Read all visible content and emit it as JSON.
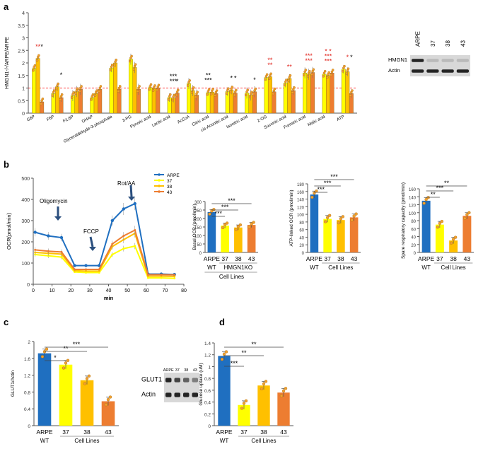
{
  "colors": {
    "arpe": "#1f6fc0",
    "c37": "#ffff00",
    "c38": "#ffc000",
    "c43": "#ed7d31",
    "dot": "#f0a030",
    "star_red": "#e0211a",
    "star_black": "#000000",
    "refline": "#ff0000"
  },
  "panels": {
    "a": "a",
    "b": "b",
    "c": "c",
    "d": "d"
  },
  "chart_data": [
    {
      "id": "a",
      "type": "bar",
      "ylabel": "HMGN1-/-/ARPE/ARPE",
      "ylim": [
        0,
        4
      ],
      "yticks": [
        "0",
        "0.5",
        "1",
        "1.5",
        "2",
        "2.5",
        "3",
        "3.5",
        "4"
      ],
      "reference_line": 1,
      "categories": [
        "G6P",
        "F6P",
        "F1,6P",
        "DHAP",
        "Glyceraldehyde-3-phosphate",
        "3-PG",
        "Pyruvic acid",
        "Lactic acid",
        "AcCoA",
        "Citric acid",
        "cis-Aconitic acid",
        "Isocitric acid",
        "2-OG",
        "Succinic acid",
        "Fumaric acid",
        "Malic acid",
        "ATP"
      ],
      "series": [
        {
          "name": "37",
          "values": [
            1.78,
            0.78,
            0.7,
            0.62,
            1.8,
            2.15,
            1.02,
            0.62,
            1.18,
            0.82,
            0.86,
            0.8,
            1.42,
            1.2,
            1.6,
            1.55,
            1.75
          ]
        },
        {
          "name": "38",
          "values": [
            2.18,
            1.05,
            0.86,
            0.78,
            2.0,
            1.82,
            0.98,
            0.6,
            0.9,
            0.84,
            0.92,
            0.72,
            1.45,
            1.38,
            1.55,
            1.5,
            1.65
          ]
        },
        {
          "name": "43",
          "values": [
            0.45,
            0.62,
            0.95,
            0.95,
            0.95,
            0.95,
            1.0,
            0.8,
            0.72,
            0.78,
            0.8,
            0.85,
            0.85,
            0.9,
            1.62,
            1.6,
            0.78
          ]
        }
      ],
      "stars": [
        {
          "cat": "G6P",
          "series": 1,
          "text": "**",
          "color": "red"
        },
        {
          "cat": "G6P",
          "series": 2,
          "text": "*",
          "color": "black"
        },
        {
          "cat": "F6P",
          "series": 2,
          "text": "*",
          "color": "black"
        },
        {
          "cat": "Lactic acid",
          "series": 1,
          "text": "***",
          "color": "black"
        },
        {
          "cat": "Lactic acid",
          "series": 1,
          "text": "***",
          "color": "black",
          "row": 1
        },
        {
          "cat": "Lactic acid",
          "series": 2,
          "text": "*",
          "color": "black"
        },
        {
          "cat": "Citric acid",
          "series": 0,
          "text": "***",
          "color": "black"
        },
        {
          "cat": "Citric acid",
          "series": 0,
          "text": "**",
          "color": "black",
          "row": 1
        },
        {
          "cat": "cis-Aconitic acid",
          "series": 1,
          "text": "*",
          "color": "black"
        },
        {
          "cat": "cis-Aconitic acid",
          "series": 2,
          "text": "*",
          "color": "black"
        },
        {
          "cat": "Isocitric acid",
          "series": 2,
          "text": "*",
          "color": "black"
        },
        {
          "cat": "2-OG",
          "series": 1,
          "text": "**",
          "color": "red"
        },
        {
          "cat": "2-OG",
          "series": 1,
          "text": "**",
          "color": "red",
          "row": 1
        },
        {
          "cat": "Succinic acid",
          "series": 1,
          "text": "**",
          "color": "red"
        },
        {
          "cat": "Fumaric acid",
          "series": 1,
          "text": "***",
          "color": "red"
        },
        {
          "cat": "Fumaric acid",
          "series": 1,
          "text": "***",
          "color": "red",
          "row": 1
        },
        {
          "cat": "Malic acid",
          "series": 1,
          "text": "***",
          "color": "red"
        },
        {
          "cat": "Malic acid",
          "series": 1,
          "text": "***",
          "color": "red",
          "row": 1
        },
        {
          "cat": "Malic acid",
          "series": 1,
          "text": "* *",
          "color": "red",
          "row": 2
        },
        {
          "cat": "ATP",
          "series": 1,
          "text": "*",
          "color": "red"
        },
        {
          "cat": "ATP",
          "series": 2,
          "text": "*",
          "color": "black"
        }
      ]
    },
    {
      "id": "blot_a",
      "type": "blot",
      "lanes": [
        "ARPE",
        "37",
        "38",
        "43"
      ],
      "rows": [
        "HMGN1",
        "Actin"
      ]
    },
    {
      "id": "b_ocr",
      "type": "line",
      "title": "",
      "xlabel": "min",
      "ylabel": "OCR(pmol/min)",
      "xlim": [
        0,
        80
      ],
      "ylim": [
        0,
        500
      ],
      "xticks": [
        "0",
        "10",
        "20",
        "30",
        "40",
        "50",
        "60",
        "70",
        "80"
      ],
      "yticks": [
        "0",
        "100",
        "200",
        "300",
        "400",
        "500"
      ],
      "x": [
        1,
        8,
        15,
        22,
        28,
        35,
        42,
        48,
        54,
        61,
        68,
        75
      ],
      "series": [
        {
          "name": "ARPE",
          "values": [
            245,
            228,
            220,
            88,
            88,
            88,
            300,
            355,
            380,
            48,
            48,
            46
          ]
        },
        {
          "name": "37",
          "values": [
            140,
            134,
            128,
            58,
            55,
            55,
            140,
            168,
            180,
            30,
            30,
            28
          ]
        },
        {
          "name": "38",
          "values": [
            150,
            146,
            142,
            64,
            62,
            62,
            178,
            210,
            240,
            38,
            38,
            37
          ]
        },
        {
          "name": "43",
          "values": [
            162,
            156,
            152,
            70,
            70,
            70,
            190,
            228,
            255,
            45,
            45,
            44
          ]
        }
      ],
      "annotations": [
        "Oligomycin",
        "FCCP",
        "Rot/AA"
      ]
    },
    {
      "id": "b_basal",
      "type": "bar",
      "ylabel": "Basal OCR (pmol/min)",
      "ylim": [
        0,
        300
      ],
      "yticks": [
        "0",
        "50",
        "100",
        "150",
        "200",
        "250",
        "300"
      ],
      "categories": [
        "ARPE",
        "37",
        "38",
        "43"
      ],
      "values": [
        238,
        158,
        147,
        162
      ],
      "sig": [
        "***",
        "***",
        "***"
      ],
      "group_labels": {
        "wt": "WT",
        "ko": "HMGN1KO",
        "cell": "Cell Lines"
      }
    },
    {
      "id": "b_atp",
      "type": "bar",
      "ylabel": "ATP-linked OCR (pmol/min)",
      "ylim": [
        0,
        180
      ],
      "yticks": [
        "0",
        "20",
        "40",
        "60",
        "80",
        "100",
        "120",
        "140",
        "160",
        "180"
      ],
      "categories": [
        "ARPE",
        "37",
        "38",
        "43"
      ],
      "values": [
        152,
        88,
        85,
        92
      ],
      "sig": [
        "***",
        "***",
        "***"
      ],
      "group_labels": {
        "wt": "WT",
        "cell": "Cell Lines"
      }
    },
    {
      "id": "b_spare",
      "type": "bar",
      "ylabel": "Spare respiratory capacity (pmol/min)",
      "ylim": [
        0,
        160
      ],
      "yticks": [
        "0",
        "20",
        "40",
        "60",
        "80",
        "100",
        "120",
        "140",
        "160"
      ],
      "categories": [
        "ARPE",
        "37",
        "38",
        "43"
      ],
      "values": [
        130,
        70,
        30,
        92
      ],
      "sig": [
        "**",
        "***",
        "**"
      ],
      "group_labels": {
        "wt": "WT",
        "cell": "Cell Lines"
      }
    },
    {
      "id": "c",
      "type": "bar",
      "ylabel": "GLUT1/Actin",
      "ylim": [
        0,
        2.0
      ],
      "yticks": [
        "0",
        "0.4",
        "0.8",
        "1.2",
        "1.6",
        "2"
      ],
      "categories": [
        "ARPE",
        "37",
        "38",
        "43"
      ],
      "values": [
        1.72,
        1.45,
        1.08,
        0.58
      ],
      "sig": [
        "*",
        "**",
        "***"
      ],
      "group_labels": {
        "wt": "WT",
        "cell": "Cell Lines"
      }
    },
    {
      "id": "blot_c",
      "type": "blot",
      "lanes": [
        "ARPE",
        "37",
        "38",
        "43"
      ],
      "rows": [
        "GLUT1",
        "Actin"
      ]
    },
    {
      "id": "d",
      "type": "bar",
      "ylabel": "Glucose uptake (uM)",
      "ylim": [
        0,
        1.4
      ],
      "yticks": [
        "0",
        "0.2",
        "0.4",
        "0.6",
        "0.8",
        "1",
        "1.2",
        "1.4"
      ],
      "categories": [
        "ARPE",
        "37",
        "38",
        "43"
      ],
      "values": [
        1.18,
        0.35,
        0.68,
        0.56
      ],
      "sig": [
        "***",
        "**",
        "**"
      ],
      "group_labels": {
        "wt": "WT",
        "cell": "Cell Lines"
      }
    }
  ]
}
